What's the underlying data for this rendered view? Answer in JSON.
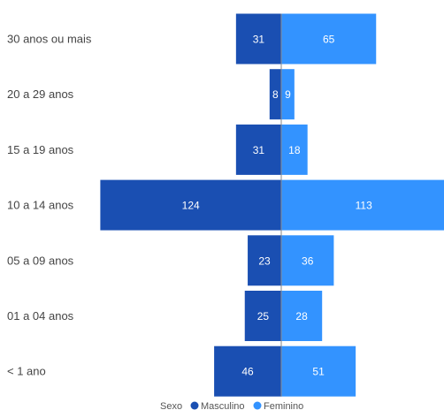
{
  "chart_data": {
    "type": "bar",
    "orientation": "horizontal",
    "layout": "population-pyramid",
    "categories": [
      "30 anos ou mais",
      "20 a 29 anos",
      "15 a 19 anos",
      "10 a 14 anos",
      "05 a 09 anos",
      "01 a 04 anos",
      "< 1 ano"
    ],
    "series": [
      {
        "name": "Masculino",
        "color": "#1a4fb2",
        "side": "left",
        "values": [
          31,
          8,
          31,
          124,
          23,
          25,
          46
        ]
      },
      {
        "name": "Feminino",
        "color": "#3393ff",
        "side": "right",
        "values": [
          65,
          9,
          18,
          113,
          36,
          28,
          51
        ]
      }
    ],
    "xlim": [
      -124,
      113
    ],
    "grid": false,
    "data_labels": true,
    "legend": {
      "title": "Sexo",
      "position": "bottom-center",
      "entries": [
        "Masculino",
        "Feminino"
      ]
    }
  }
}
